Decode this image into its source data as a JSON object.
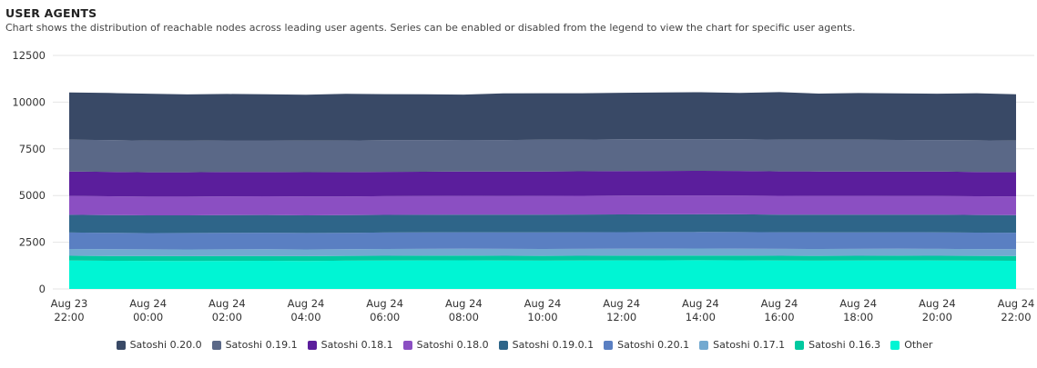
{
  "header": {
    "title": "USER AGENTS",
    "subtitle": "Chart shows the distribution of reachable nodes across leading user agents. Series can be enabled or disabled from the legend to view the chart for specific user agents."
  },
  "chart_data": {
    "type": "area",
    "stacked": true,
    "ylim": [
      0,
      12500
    ],
    "yticks": [
      0,
      2500,
      5000,
      7500,
      10000,
      12500
    ],
    "xticks": [
      [
        "Aug 23",
        "22:00"
      ],
      [
        "Aug 24",
        "00:00"
      ],
      [
        "Aug 24",
        "02:00"
      ],
      [
        "Aug 24",
        "04:00"
      ],
      [
        "Aug 24",
        "06:00"
      ],
      [
        "Aug 24",
        "08:00"
      ],
      [
        "Aug 24",
        "10:00"
      ],
      [
        "Aug 24",
        "12:00"
      ],
      [
        "Aug 24",
        "14:00"
      ],
      [
        "Aug 24",
        "16:00"
      ],
      [
        "Aug 24",
        "18:00"
      ],
      [
        "Aug 24",
        "20:00"
      ],
      [
        "Aug 24",
        "22:00"
      ]
    ],
    "grid": true,
    "legend_position": "bottom",
    "series": [
      {
        "name": "Other",
        "color": "#00f5d4",
        "values": [
          1520,
          1510,
          1505,
          1500,
          1505,
          1510,
          1500,
          1515,
          1520,
          1525,
          1530,
          1520,
          1515,
          1520,
          1525,
          1530,
          1535,
          1530,
          1520,
          1515,
          1520,
          1525,
          1520,
          1515,
          1510
        ]
      },
      {
        "name": "Satoshi 0.16.3",
        "color": "#00c9a0",
        "values": [
          255,
          255,
          255,
          255,
          255,
          255,
          255,
          255,
          255,
          255,
          255,
          255,
          255,
          255,
          255,
          255,
          255,
          255,
          255,
          255,
          255,
          255,
          255,
          255,
          255
        ]
      },
      {
        "name": "Satoshi 0.17.1",
        "color": "#72a9d0",
        "values": [
          365,
          365,
          362,
          360,
          360,
          362,
          362,
          362,
          365,
          365,
          366,
          368,
          370,
          372,
          372,
          372,
          372,
          372,
          370,
          370,
          370,
          368,
          368,
          366,
          365
        ]
      },
      {
        "name": "Satoshi 0.20.1",
        "color": "#5a7fc2",
        "values": [
          880,
          875,
          870,
          880,
          885,
          885,
          880,
          875,
          880,
          880,
          885,
          885,
          890,
          890,
          890,
          890,
          890,
          890,
          890,
          890,
          885,
          885,
          885,
          880,
          880
        ]
      },
      {
        "name": "Satoshi 0.19.0.1",
        "color": "#2e6589",
        "values": [
          950,
          950,
          950,
          945,
          945,
          945,
          945,
          945,
          945,
          945,
          945,
          945,
          945,
          945,
          945,
          945,
          945,
          945,
          945,
          945,
          945,
          945,
          945,
          945,
          945
        ]
      },
      {
        "name": "Satoshi 0.18.0",
        "color": "#8b4fc2",
        "values": [
          1010,
          1005,
          1000,
          1000,
          1005,
          1005,
          1005,
          1000,
          1000,
          1000,
          1000,
          1000,
          1005,
          1005,
          1010,
          1010,
          1010,
          1010,
          1005,
          1005,
          1005,
          1000,
          1000,
          1000,
          995
        ]
      },
      {
        "name": "Satoshi 0.18.1",
        "color": "#5b1e9c",
        "values": [
          1310,
          1310,
          1305,
          1305,
          1305,
          1300,
          1305,
          1305,
          1305,
          1305,
          1305,
          1310,
          1310,
          1310,
          1315,
          1315,
          1315,
          1315,
          1310,
          1310,
          1310,
          1310,
          1310,
          1305,
          1305
        ]
      },
      {
        "name": "Satoshi 0.19.1",
        "color": "#5a6887",
        "values": [
          1700,
          1700,
          1695,
          1690,
          1690,
          1690,
          1690,
          1690,
          1690,
          1690,
          1690,
          1690,
          1695,
          1700,
          1700,
          1700,
          1700,
          1700,
          1700,
          1695,
          1695,
          1690,
          1690,
          1690,
          1690
        ]
      },
      {
        "name": "Satoshi 0.20.0",
        "color": "#394966",
        "values": [
          2530,
          2520,
          2510,
          2480,
          2490,
          2470,
          2450,
          2500,
          2470,
          2460,
          2430,
          2500,
          2490,
          2480,
          2490,
          2500,
          2510,
          2480,
          2540,
          2470,
          2500,
          2490,
          2480,
          2520,
          2480
        ]
      }
    ]
  },
  "legend": [
    {
      "label": "Satoshi 0.20.0",
      "color": "#394966"
    },
    {
      "label": "Satoshi 0.19.1",
      "color": "#5a6887"
    },
    {
      "label": "Satoshi 0.18.1",
      "color": "#5b1e9c"
    },
    {
      "label": "Satoshi 0.18.0",
      "color": "#8b4fc2"
    },
    {
      "label": "Satoshi 0.19.0.1",
      "color": "#2e6589"
    },
    {
      "label": "Satoshi 0.20.1",
      "color": "#5a7fc2"
    },
    {
      "label": "Satoshi 0.17.1",
      "color": "#72a9d0"
    },
    {
      "label": "Satoshi 0.16.3",
      "color": "#00c9a0"
    },
    {
      "label": "Other",
      "color": "#00f5d4"
    }
  ]
}
